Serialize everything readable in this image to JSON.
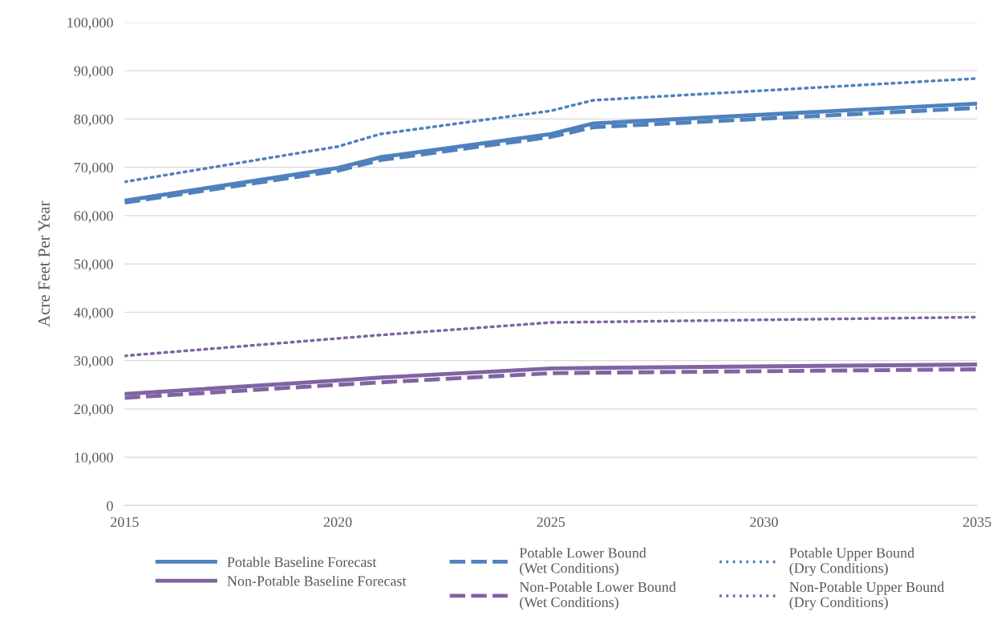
{
  "chart_data": {
    "type": "line",
    "ylabel": "Acre Feet Per Year",
    "x": [
      2015,
      2020,
      2021,
      2025,
      2026,
      2035
    ],
    "series": [
      {
        "name": "Potable Baseline Forecast",
        "color": "#4f81bd",
        "line_style": "solid",
        "values": [
          63100,
          69900,
          72100,
          76900,
          79100,
          83200
        ]
      },
      {
        "name": "Potable Lower Bound\n(Wet Conditions)",
        "color": "#4f81bd",
        "line_style": "dashed",
        "values": [
          62700,
          69300,
          71500,
          76300,
          78300,
          82300
        ]
      },
      {
        "name": "Potable Upper Bound\n(Dry Conditions)",
        "color": "#4f81bd",
        "line_style": "dotted",
        "values": [
          67000,
          74300,
          76900,
          81700,
          83900,
          88400
        ]
      },
      {
        "name": "Non-Potable Baseline Forecast",
        "color": "#8064a2",
        "line_style": "solid",
        "values": [
          23100,
          25900,
          26500,
          28400,
          28500,
          29200
        ]
      },
      {
        "name": "Non-Potable Lower Bound\n(Wet Conditions)",
        "color": "#8064a2",
        "line_style": "dashed",
        "values": [
          22300,
          25000,
          25500,
          27400,
          27500,
          28200
        ]
      },
      {
        "name": "Non-Potable Upper Bound\n(Dry Conditions)",
        "color": "#8064a2",
        "line_style": "dotted",
        "values": [
          31000,
          34600,
          35300,
          37900,
          38000,
          39000
        ]
      }
    ],
    "xlim": [
      2015,
      2035
    ],
    "xticks": [
      2015,
      2020,
      2025,
      2030,
      2035
    ],
    "ylim": [
      0,
      100000
    ],
    "yticks": [
      0,
      {
        "value": 10000,
        "label": "10,000"
      },
      {
        "value": 20000,
        "label": "20,000"
      },
      {
        "value": 30000,
        "label": "30,000"
      },
      {
        "value": 40000,
        "label": "40,000"
      },
      {
        "value": 50000,
        "label": "50,000"
      },
      {
        "value": 60000,
        "label": "60,000"
      },
      {
        "value": 70000,
        "label": "70,000"
      },
      {
        "value": 80000,
        "label": "80,000"
      },
      {
        "value": 90000,
        "label": "90,000"
      },
      {
        "value": 100000,
        "label": "100,000"
      }
    ],
    "grid": "y",
    "legend": "bottom",
    "marker": "none"
  }
}
